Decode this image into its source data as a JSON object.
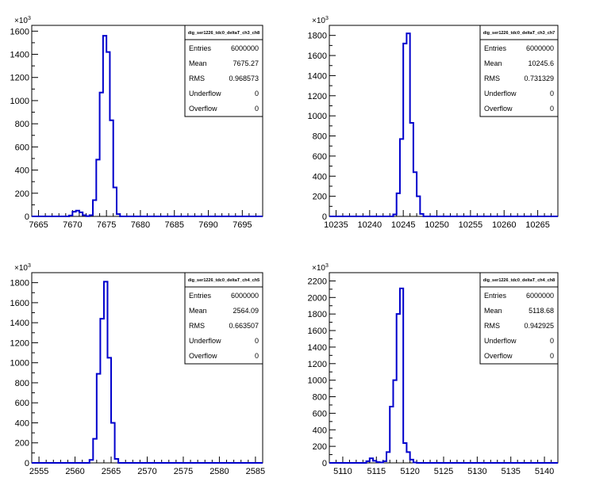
{
  "chart_data": [
    {
      "type": "histogram",
      "stats": {
        "title": "dig_ser1226_tdc0_deltaT_ch3_ch8",
        "rows": [
          {
            "label": "Entries",
            "value": "6000000"
          },
          {
            "label": "Mean",
            "value": "7675.27"
          },
          {
            "label": "RMS",
            "value": "0.968573"
          },
          {
            "label": "Underflow",
            "value": "0"
          },
          {
            "label": "Overflow",
            "value": "0"
          }
        ]
      },
      "xlim": [
        7664,
        7698
      ],
      "ylim": [
        0,
        1650
      ],
      "xticks": [
        7665,
        7670,
        7675,
        7680,
        7685,
        7690,
        7695
      ],
      "yticks": [
        0,
        200,
        400,
        600,
        800,
        1000,
        1200,
        1400,
        1600
      ],
      "yexponent": "10",
      "yexp_power": "3",
      "bin_width": 0.5,
      "bins": [
        {
          "x": 7669.5,
          "y": 8
        },
        {
          "x": 7670,
          "y": 40
        },
        {
          "x": 7670.5,
          "y": 50
        },
        {
          "x": 7671,
          "y": 35
        },
        {
          "x": 7671.5,
          "y": 10
        },
        {
          "x": 7672,
          "y": 2
        },
        {
          "x": 7672.5,
          "y": 10
        },
        {
          "x": 7673,
          "y": 140
        },
        {
          "x": 7673.5,
          "y": 490
        },
        {
          "x": 7674,
          "y": 1070
        },
        {
          "x": 7674.5,
          "y": 1560
        },
        {
          "x": 7675,
          "y": 1420
        },
        {
          "x": 7675.5,
          "y": 830
        },
        {
          "x": 7676,
          "y": 250
        },
        {
          "x": 7676.5,
          "y": 20
        }
      ]
    },
    {
      "type": "histogram",
      "stats": {
        "title": "dig_ser1226_tdc0_deltaT_ch3_ch7",
        "rows": [
          {
            "label": "Entries",
            "value": "6000000"
          },
          {
            "label": "Mean",
            "value": "10245.6"
          },
          {
            "label": "RMS",
            "value": "0.731329"
          },
          {
            "label": "Underflow",
            "value": "0"
          },
          {
            "label": "Overflow",
            "value": "0"
          }
        ]
      },
      "xlim": [
        10234,
        10268
      ],
      "ylim": [
        0,
        1900
      ],
      "xticks": [
        10235,
        10240,
        10245,
        10250,
        10255,
        10260,
        10265
      ],
      "yticks": [
        0,
        200,
        400,
        600,
        800,
        1000,
        1200,
        1400,
        1600,
        1800
      ],
      "yexponent": "10",
      "yexp_power": "3",
      "bin_width": 0.5,
      "bins": [
        {
          "x": 10243.5,
          "y": 20
        },
        {
          "x": 10244,
          "y": 230
        },
        {
          "x": 10244.5,
          "y": 770
        },
        {
          "x": 10245,
          "y": 1720
        },
        {
          "x": 10245.5,
          "y": 1820
        },
        {
          "x": 10246,
          "y": 930
        },
        {
          "x": 10246.5,
          "y": 440
        },
        {
          "x": 10247,
          "y": 200
        },
        {
          "x": 10247.5,
          "y": 25
        }
      ]
    },
    {
      "type": "histogram",
      "stats": {
        "title": "dig_ser1226_tdc0_deltaT_ch4_ch5",
        "rows": [
          {
            "label": "Entries",
            "value": "6000000"
          },
          {
            "label": "Mean",
            "value": "2564.09"
          },
          {
            "label": "RMS",
            "value": "0.663507"
          },
          {
            "label": "Underflow",
            "value": "0"
          },
          {
            "label": "Overflow",
            "value": "0"
          }
        ]
      },
      "xlim": [
        2554,
        2586
      ],
      "ylim": [
        0,
        1900
      ],
      "xticks": [
        2555,
        2560,
        2565,
        2570,
        2575,
        2580,
        2585
      ],
      "yticks": [
        0,
        200,
        400,
        600,
        800,
        1000,
        1200,
        1400,
        1600,
        1800
      ],
      "yexponent": "10",
      "yexp_power": "3",
      "bin_width": 0.5,
      "bins": [
        {
          "x": 2562,
          "y": 30
        },
        {
          "x": 2562.5,
          "y": 240
        },
        {
          "x": 2563,
          "y": 890
        },
        {
          "x": 2563.5,
          "y": 1440
        },
        {
          "x": 2564,
          "y": 1810
        },
        {
          "x": 2564.5,
          "y": 1050
        },
        {
          "x": 2565,
          "y": 400
        },
        {
          "x": 2565.5,
          "y": 40
        }
      ]
    },
    {
      "type": "histogram",
      "stats": {
        "title": "dig_ser1226_tdc0_deltaT_ch4_ch8",
        "rows": [
          {
            "label": "Entries",
            "value": "6000000"
          },
          {
            "label": "Mean",
            "value": "5118.68"
          },
          {
            "label": "RMS",
            "value": "0.942925"
          },
          {
            "label": "Underflow",
            "value": "0"
          },
          {
            "label": "Overflow",
            "value": "0"
          }
        ]
      },
      "xlim": [
        5108,
        5142
      ],
      "ylim": [
        0,
        2300
      ],
      "xticks": [
        5110,
        5115,
        5120,
        5125,
        5130,
        5135,
        5140
      ],
      "yticks": [
        0,
        200,
        400,
        600,
        800,
        1000,
        1200,
        1400,
        1600,
        1800,
        2000,
        2200
      ],
      "yexponent": "10",
      "yexp_power": "3",
      "bin_width": 0.5,
      "bins": [
        {
          "x": 5113.5,
          "y": 20
        },
        {
          "x": 5114,
          "y": 55
        },
        {
          "x": 5114.5,
          "y": 25
        },
        {
          "x": 5115,
          "y": 10
        },
        {
          "x": 5115.5,
          "y": 5
        },
        {
          "x": 5116,
          "y": 20
        },
        {
          "x": 5116.5,
          "y": 130
        },
        {
          "x": 5117,
          "y": 680
        },
        {
          "x": 5117.5,
          "y": 1000
        },
        {
          "x": 5118,
          "y": 1800
        },
        {
          "x": 5118.5,
          "y": 2110
        },
        {
          "x": 5119,
          "y": 240
        },
        {
          "x": 5119.5,
          "y": 130
        },
        {
          "x": 5120,
          "y": 40
        },
        {
          "x": 5120.5,
          "y": 5
        }
      ]
    }
  ],
  "colors": {
    "histogram": "#0000cc",
    "axis": "#000000",
    "background": "#ffffff"
  }
}
